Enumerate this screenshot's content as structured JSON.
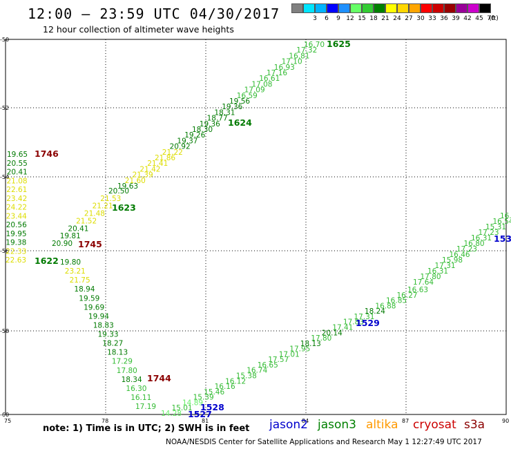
{
  "header": {
    "title": "12:00 – 23:59 UTC 04/30/2017",
    "subtitle": "12 hour collection of altimeter wave heights"
  },
  "legend": {
    "unit": "(ft)",
    "bins": [
      {
        "color": "#808080",
        "label": ""
      },
      {
        "color": "#00e5ff",
        "label": "3"
      },
      {
        "color": "#00b3ff",
        "label": "6"
      },
      {
        "color": "#0000ff",
        "label": "9"
      },
      {
        "color": "#1e90ff",
        "label": "12"
      },
      {
        "color": "#66ff66",
        "label": "15"
      },
      {
        "color": "#33cc33",
        "label": "18"
      },
      {
        "color": "#008000",
        "label": "21"
      },
      {
        "color": "#ffff00",
        "label": "24"
      },
      {
        "color": "#ffd700",
        "label": "27"
      },
      {
        "color": "#ffa500",
        "label": "30"
      },
      {
        "color": "#ff0000",
        "label": "33"
      },
      {
        "color": "#cc0000",
        "label": "36"
      },
      {
        "color": "#990000",
        "label": "39"
      },
      {
        "color": "#990099",
        "label": "42"
      },
      {
        "color": "#cc00cc",
        "label": "45"
      },
      {
        "color": "#000000",
        "label": "70"
      }
    ]
  },
  "axes": {
    "x_ticks": [
      "75",
      "78",
      "81",
      "84",
      "87",
      "90"
    ],
    "y_ticks": [
      "-50",
      "-52",
      "-54",
      "-56",
      "-58",
      "-60"
    ]
  },
  "tracks": {
    "t1625": {
      "label": "1625",
      "label_color": "#007a00",
      "points": [
        {
          "v": "16.70",
          "c": "#33bb33"
        },
        {
          "v": "17.32",
          "c": "#33bb33"
        },
        {
          "v": "16.81",
          "c": "#33bb33"
        },
        {
          "v": "17.10",
          "c": "#33bb33"
        },
        {
          "v": "16.93",
          "c": "#33bb33"
        },
        {
          "v": "17.16",
          "c": "#33bb33"
        },
        {
          "v": "16.61",
          "c": "#33bb33"
        },
        {
          "v": "17.08",
          "c": "#33bb33"
        },
        {
          "v": "17.09",
          "c": "#33bb33"
        },
        {
          "v": "16.59",
          "c": "#33bb33"
        },
        {
          "v": "19.56",
          "c": "#007a00"
        },
        {
          "v": "19.36",
          "c": "#007a00"
        },
        {
          "v": "18.31",
          "c": "#007a00"
        },
        {
          "v": "18.77",
          "c": "#007a00"
        },
        {
          "v": "19.36",
          "c": "#007a00"
        },
        {
          "v": "18.30",
          "c": "#007a00"
        },
        {
          "v": "19.26",
          "c": "#007a00"
        },
        {
          "v": "19.37",
          "c": "#007a00"
        },
        {
          "v": "20.92",
          "c": "#007a00"
        },
        {
          "v": "21.22",
          "c": "#dddd00"
        },
        {
          "v": "21.86",
          "c": "#dddd00"
        },
        {
          "v": "21.41",
          "c": "#dddd00"
        },
        {
          "v": "21.42",
          "c": "#dddd00"
        },
        {
          "v": "21.39",
          "c": "#dddd00"
        },
        {
          "v": "21.60",
          "c": "#dddd00"
        },
        {
          "v": "19.63",
          "c": "#007a00"
        }
      ]
    },
    "t1624": {
      "label": "1624",
      "label_color": "#007a00"
    },
    "t1623": {
      "label": "1623",
      "label_color": "#007a00",
      "points": [
        {
          "v": "20.50",
          "c": "#007a00"
        },
        {
          "v": "21.53",
          "c": "#dddd00"
        },
        {
          "v": "21.21",
          "c": "#dddd00"
        },
        {
          "v": "21.48",
          "c": "#dddd00"
        },
        {
          "v": "21.52",
          "c": "#dddd00"
        },
        {
          "v": "20.41",
          "c": "#007a00"
        },
        {
          "v": "19.81",
          "c": "#007a00"
        },
        {
          "v": "20.90",
          "c": "#007a00"
        }
      ]
    },
    "t1746": {
      "label": "1746",
      "label_color": "#8b0000",
      "points": [
        {
          "v": "19.65",
          "c": "#007a00"
        },
        {
          "v": "20.55",
          "c": "#007a00"
        },
        {
          "v": "20.41",
          "c": "#007a00"
        },
        {
          "v": "21.08",
          "c": "#dddd00"
        },
        {
          "v": "22.61",
          "c": "#dddd00"
        },
        {
          "v": "23.42",
          "c": "#dddd00"
        },
        {
          "v": "24.22",
          "c": "#dddd00"
        },
        {
          "v": "23.44",
          "c": "#dddd00"
        },
        {
          "v": "20.56",
          "c": "#007a00"
        },
        {
          "v": "19.95",
          "c": "#007a00"
        },
        {
          "v": "19.38",
          "c": "#007a00"
        },
        {
          "v": "22.33",
          "c": "#dddd00"
        },
        {
          "v": "22.63",
          "c": "#dddd00"
        }
      ]
    },
    "t1745": {
      "label": "1745",
      "label_color": "#8b0000"
    },
    "t1622": {
      "label": "1622",
      "label_color": "#007a00"
    },
    "t1744": {
      "label": "1744",
      "label_color": "#8b0000",
      "points": [
        {
          "v": "19.80",
          "c": "#007a00"
        },
        {
          "v": "23.21",
          "c": "#dddd00"
        },
        {
          "v": "21.75",
          "c": "#dddd00"
        },
        {
          "v": "18.94",
          "c": "#007a00"
        },
        {
          "v": "19.59",
          "c": "#007a00"
        },
        {
          "v": "19.69",
          "c": "#007a00"
        },
        {
          "v": "19.94",
          "c": "#007a00"
        },
        {
          "v": "18.83",
          "c": "#007a00"
        },
        {
          "v": "19.33",
          "c": "#007a00"
        },
        {
          "v": "18.27",
          "c": "#007a00"
        },
        {
          "v": "18.13",
          "c": "#007a00"
        },
        {
          "v": "17.29",
          "c": "#33bb33"
        },
        {
          "v": "17.80",
          "c": "#33bb33"
        },
        {
          "v": "18.34",
          "c": "#007a00"
        },
        {
          "v": "16.30",
          "c": "#33bb33"
        },
        {
          "v": "16.11",
          "c": "#33bb33"
        },
        {
          "v": "17.19",
          "c": "#33bb33"
        }
      ]
    },
    "t1528": {
      "label": "1528",
      "label_color": "#0000cc"
    },
    "t1527": {
      "label": "1527",
      "label_color": "#0000cc"
    },
    "t1529": {
      "label": "1529",
      "label_color": "#0000cc",
      "points": [
        {
          "v": "14.28",
          "c": "#66ee66"
        },
        {
          "v": "15.01",
          "c": "#33bb33"
        },
        {
          "v": "14.89",
          "c": "#66ee66"
        },
        {
          "v": "15.39",
          "c": "#33bb33"
        },
        {
          "v": "15.46",
          "c": "#33bb33"
        },
        {
          "v": "16.16",
          "c": "#33bb33"
        },
        {
          "v": "16.12",
          "c": "#33bb33"
        },
        {
          "v": "15.38",
          "c": "#33bb33"
        },
        {
          "v": "16.74",
          "c": "#33bb33"
        },
        {
          "v": "16.65",
          "c": "#33bb33"
        },
        {
          "v": "17.57",
          "c": "#33bb33"
        },
        {
          "v": "17.01",
          "c": "#33bb33"
        },
        {
          "v": "17.95",
          "c": "#33bb33"
        },
        {
          "v": "18.13",
          "c": "#007a00"
        },
        {
          "v": "17.80",
          "c": "#33bb33"
        },
        {
          "v": "20.14",
          "c": "#007a00"
        },
        {
          "v": "17.41",
          "c": "#33bb33"
        },
        {
          "v": "17.83",
          "c": "#33bb33"
        },
        {
          "v": "17.31",
          "c": "#33bb33"
        },
        {
          "v": "18.24",
          "c": "#007a00"
        },
        {
          "v": "16.88",
          "c": "#33bb33"
        },
        {
          "v": "16.85",
          "c": "#33bb33"
        },
        {
          "v": "16.27",
          "c": "#33bb33"
        },
        {
          "v": "16.63",
          "c": "#33bb33"
        }
      ]
    },
    "t153": {
      "label": "153",
      "label_color": "#0000cc",
      "points": [
        {
          "v": "17.64",
          "c": "#33bb33"
        },
        {
          "v": "17.80",
          "c": "#33bb33"
        },
        {
          "v": "16.31",
          "c": "#33bb33"
        },
        {
          "v": "17.31",
          "c": "#33bb33"
        },
        {
          "v": "15.98",
          "c": "#33bb33"
        },
        {
          "v": "16.46",
          "c": "#33bb33"
        },
        {
          "v": "17.23",
          "c": "#33bb33"
        },
        {
          "v": "16.80",
          "c": "#33bb33"
        },
        {
          "v": "16.31",
          "c": "#33bb33"
        },
        {
          "v": "17.23",
          "c": "#33bb33"
        },
        {
          "v": "15.31",
          "c": "#33bb33"
        },
        {
          "v": "16.54",
          "c": "#33bb33"
        },
        {
          "v": "16.",
          "c": "#33bb33"
        }
      ]
    }
  },
  "note": "note:  1) Time is in UTC;  2) SWH is in feet",
  "satellites": [
    {
      "name": "jason2",
      "color": "#0000cc"
    },
    {
      "name": "jason3",
      "color": "#008000"
    },
    {
      "name": "altika",
      "color": "#ff9900"
    },
    {
      "name": "cryosat",
      "color": "#cc0000"
    },
    {
      "name": "s3a",
      "color": "#8b0000"
    }
  ],
  "footer": "NOAA/NESDIS Center for Satellite Applications and Research     May  1 12:27:49 UTC 2017"
}
